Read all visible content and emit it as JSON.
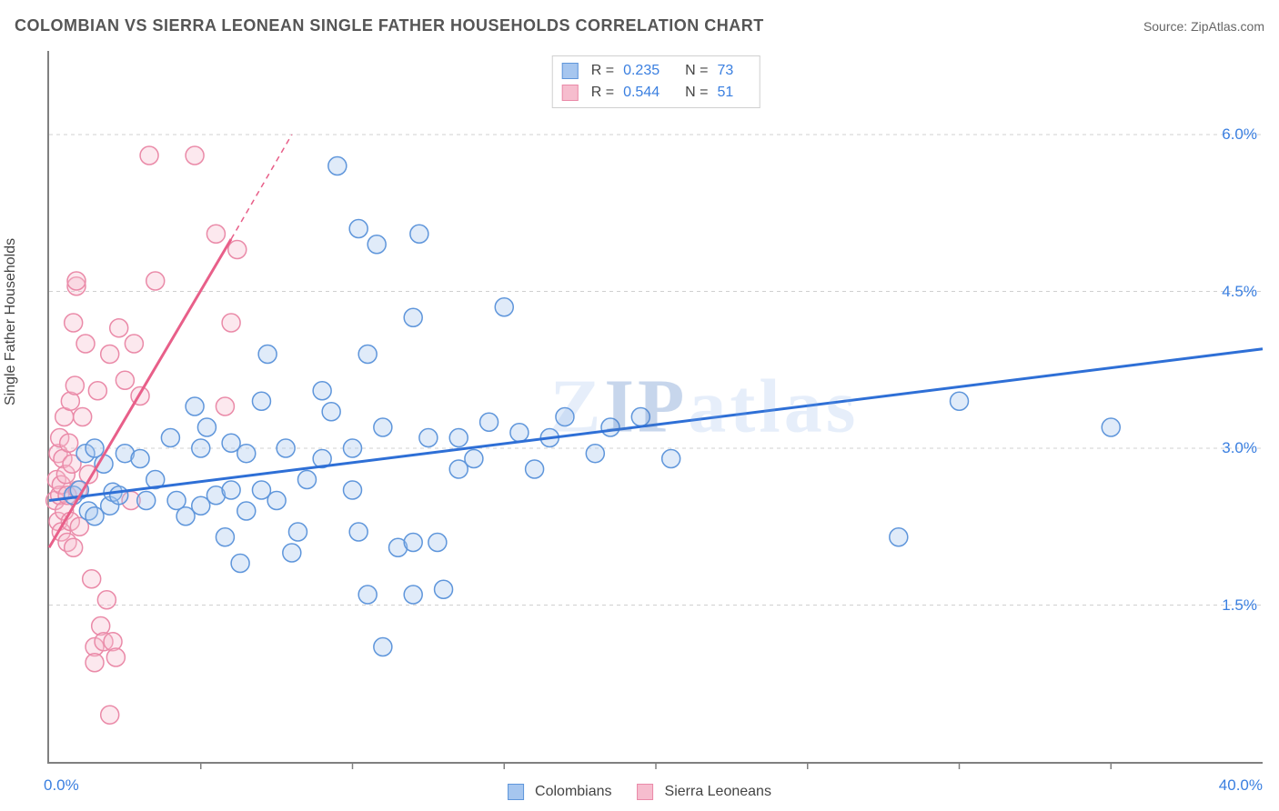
{
  "title": "COLOMBIAN VS SIERRA LEONEAN SINGLE FATHER HOUSEHOLDS CORRELATION CHART",
  "source_label": "Source: ",
  "source_name": "ZipAtlas.com",
  "ylabel": "Single Father Households",
  "x_origin_label": "0.0%",
  "x_max_label": "40.0%",
  "watermark": "ZIPatlas",
  "chart": {
    "type": "scatter",
    "x_range": [
      0,
      40
    ],
    "y_range": [
      0,
      6.8
    ],
    "y_gridlines": [
      1.5,
      3.0,
      4.5,
      6.0
    ],
    "y_tick_labels": [
      "1.5%",
      "3.0%",
      "4.5%",
      "6.0%"
    ],
    "x_tick_positions": [
      5,
      10,
      15,
      20,
      25,
      30,
      35
    ],
    "grid_color": "#d0d0d0",
    "grid_dash": "4 4",
    "background": "#ffffff",
    "axis_color": "#808080",
    "marker_radius": 10,
    "marker_stroke_width": 1.5,
    "marker_fill_opacity": 0.35,
    "line_width": 3
  },
  "series": [
    {
      "key": "colombians",
      "label": "Colombians",
      "color_fill": "#a6c6ef",
      "color_stroke": "#5f96db",
      "line_color": "#2e6fd6",
      "R": "0.235",
      "N": "73",
      "trend": {
        "x1": 0,
        "y1": 2.5,
        "x2": 40,
        "y2": 3.95
      },
      "points": [
        [
          0.8,
          2.55
        ],
        [
          1.0,
          2.6
        ],
        [
          1.2,
          2.95
        ],
        [
          1.3,
          2.4
        ],
        [
          1.5,
          2.35
        ],
        [
          1.5,
          3.0
        ],
        [
          1.8,
          2.85
        ],
        [
          2.0,
          2.45
        ],
        [
          2.1,
          2.58
        ],
        [
          2.3,
          2.55
        ],
        [
          2.5,
          2.95
        ],
        [
          3.0,
          2.9
        ],
        [
          3.2,
          2.5
        ],
        [
          3.5,
          2.7
        ],
        [
          4.0,
          3.1
        ],
        [
          4.2,
          2.5
        ],
        [
          4.5,
          2.35
        ],
        [
          4.8,
          3.4
        ],
        [
          5.0,
          2.45
        ],
        [
          5.0,
          3.0
        ],
        [
          5.2,
          3.2
        ],
        [
          5.5,
          2.55
        ],
        [
          5.8,
          2.15
        ],
        [
          6.0,
          2.6
        ],
        [
          6.0,
          3.05
        ],
        [
          6.3,
          1.9
        ],
        [
          6.5,
          2.4
        ],
        [
          6.5,
          2.95
        ],
        [
          7.0,
          3.45
        ],
        [
          7.0,
          2.6
        ],
        [
          7.2,
          3.9
        ],
        [
          7.5,
          2.5
        ],
        [
          7.8,
          3.0
        ],
        [
          8.0,
          2.0
        ],
        [
          8.2,
          2.2
        ],
        [
          8.5,
          2.7
        ],
        [
          9.0,
          3.55
        ],
        [
          9.0,
          2.9
        ],
        [
          9.3,
          3.35
        ],
        [
          9.5,
          5.7
        ],
        [
          10.0,
          3.0
        ],
        [
          10.0,
          2.6
        ],
        [
          10.2,
          2.2
        ],
        [
          10.2,
          5.1
        ],
        [
          10.5,
          3.9
        ],
        [
          10.5,
          1.6
        ],
        [
          10.8,
          4.95
        ],
        [
          11.0,
          1.1
        ],
        [
          11.0,
          3.2
        ],
        [
          11.5,
          2.05
        ],
        [
          12.0,
          1.6
        ],
        [
          12.0,
          4.25
        ],
        [
          12.0,
          2.1
        ],
        [
          12.2,
          5.05
        ],
        [
          12.5,
          3.1
        ],
        [
          12.8,
          2.1
        ],
        [
          13.0,
          1.65
        ],
        [
          13.5,
          3.1
        ],
        [
          13.5,
          2.8
        ],
        [
          14.0,
          2.9
        ],
        [
          14.5,
          3.25
        ],
        [
          15.0,
          4.35
        ],
        [
          15.5,
          3.15
        ],
        [
          16.0,
          2.8
        ],
        [
          16.5,
          3.1
        ],
        [
          17.0,
          3.3
        ],
        [
          18.0,
          2.95
        ],
        [
          18.5,
          3.2
        ],
        [
          19.5,
          3.3
        ],
        [
          20.5,
          2.9
        ],
        [
          28.0,
          2.15
        ],
        [
          30.0,
          3.45
        ],
        [
          35.0,
          3.2
        ]
      ]
    },
    {
      "key": "sierra_leoneans",
      "label": "Sierra Leoneans",
      "color_fill": "#f6bdce",
      "color_stroke": "#ea8aa8",
      "line_color": "#e85f89",
      "R": "0.544",
      "N": "51",
      "trend": {
        "x1": 0,
        "y1": 2.05,
        "x2": 6.0,
        "y2": 5.0
      },
      "trend_ext": {
        "x1": 6.0,
        "y1": 5.0,
        "x2": 8,
        "y2": 6.0
      },
      "points": [
        [
          0.2,
          2.5
        ],
        [
          0.25,
          2.7
        ],
        [
          0.3,
          2.3
        ],
        [
          0.3,
          2.95
        ],
        [
          0.35,
          2.55
        ],
        [
          0.35,
          3.1
        ],
        [
          0.4,
          2.2
        ],
        [
          0.4,
          2.65
        ],
        [
          0.45,
          2.9
        ],
        [
          0.5,
          2.4
        ],
        [
          0.5,
          3.3
        ],
        [
          0.55,
          2.75
        ],
        [
          0.6,
          2.1
        ],
        [
          0.6,
          2.55
        ],
        [
          0.65,
          3.05
        ],
        [
          0.7,
          2.3
        ],
        [
          0.7,
          3.45
        ],
        [
          0.75,
          2.85
        ],
        [
          0.8,
          2.05
        ],
        [
          0.8,
          4.2
        ],
        [
          0.85,
          3.6
        ],
        [
          0.9,
          4.55
        ],
        [
          0.9,
          4.6
        ],
        [
          0.95,
          2.6
        ],
        [
          1.0,
          2.25
        ],
        [
          1.1,
          3.3
        ],
        [
          1.2,
          4.0
        ],
        [
          1.3,
          2.75
        ],
        [
          1.4,
          1.75
        ],
        [
          1.5,
          1.1
        ],
        [
          1.5,
          0.95
        ],
        [
          1.6,
          3.55
        ],
        [
          1.7,
          1.3
        ],
        [
          1.8,
          1.15
        ],
        [
          1.9,
          1.55
        ],
        [
          2.0,
          3.9
        ],
        [
          2.0,
          0.45
        ],
        [
          2.1,
          1.15
        ],
        [
          2.2,
          1.0
        ],
        [
          2.3,
          4.15
        ],
        [
          2.5,
          3.65
        ],
        [
          2.7,
          2.5
        ],
        [
          2.8,
          4.0
        ],
        [
          3.0,
          3.5
        ],
        [
          3.3,
          5.8
        ],
        [
          3.5,
          4.6
        ],
        [
          4.8,
          5.8
        ],
        [
          5.5,
          5.05
        ],
        [
          5.8,
          3.4
        ],
        [
          6.0,
          4.2
        ],
        [
          6.2,
          4.9
        ]
      ]
    }
  ],
  "stats_prefix_R": "R  =  ",
  "stats_prefix_N": "N  =  "
}
